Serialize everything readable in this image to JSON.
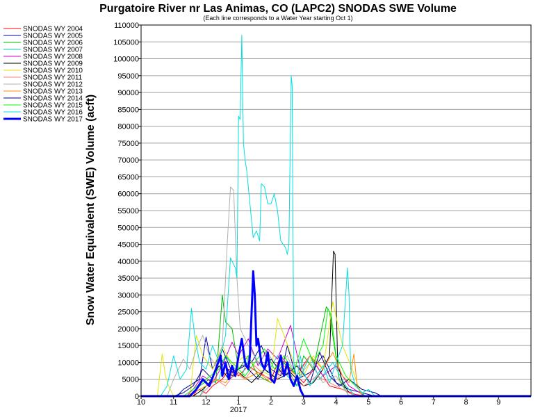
{
  "chart_data": {
    "type": "line",
    "title": "Purgatoire River nr Las Animas, CO (LAPC2) SNODAS SWE Volume",
    "subtitle": "(Each line corresponds to a Water Year starting Oct 1)",
    "ylabel": "Snow Water Equivalent (SWE) Volume (acft)",
    "xlabel": "",
    "ylim": [
      0,
      110000
    ],
    "y_ticks": [
      0,
      5000,
      10000,
      15000,
      20000,
      25000,
      30000,
      35000,
      40000,
      45000,
      50000,
      55000,
      60000,
      65000,
      70000,
      75000,
      80000,
      85000,
      90000,
      95000,
      100000,
      105000,
      110000
    ],
    "x_range_months": [
      10,
      22
    ],
    "x_ticks": [
      {
        "m": 10,
        "label": "10"
      },
      {
        "m": 11,
        "label": "11"
      },
      {
        "m": 12,
        "label": "12"
      },
      {
        "m": 13,
        "label": "1"
      },
      {
        "m": 14,
        "label": "2"
      },
      {
        "m": 15,
        "label": "3"
      },
      {
        "m": 16,
        "label": "4"
      },
      {
        "m": 17,
        "label": "5"
      },
      {
        "m": 18,
        "label": "6"
      },
      {
        "m": 19,
        "label": "7"
      },
      {
        "m": 20,
        "label": "8"
      },
      {
        "m": 21,
        "label": "9"
      }
    ],
    "year_label": "2017",
    "grid": true,
    "legend_position": "left",
    "series": [
      {
        "name": "SNODAS WY 2004",
        "color": "#ff0000",
        "width": 1,
        "x": [
          10,
          11.6,
          11.7,
          11.8,
          12.0,
          12.2,
          12.5,
          12.7,
          13.0,
          13.3,
          13.6,
          14.0,
          14.3,
          14.6,
          15.0,
          15.4,
          15.8,
          16.2,
          16.6,
          17.0,
          22
        ],
        "y": [
          0,
          0,
          1500,
          2000,
          800,
          3000,
          5000,
          8000,
          6000,
          9000,
          7000,
          5000,
          12000,
          8000,
          4000,
          9000,
          3000,
          2000,
          500,
          0,
          0
        ]
      },
      {
        "name": "SNODAS WY 2005",
        "color": "#0000aa",
        "width": 1,
        "x": [
          10,
          11.1,
          11.3,
          11.8,
          12.0,
          12.2,
          12.4,
          12.8,
          13.1,
          13.4,
          13.7,
          14.0,
          14.3,
          14.5,
          14.8,
          15.2,
          15.6,
          16.0,
          16.4,
          16.8,
          17.2,
          22
        ],
        "y": [
          0,
          0,
          2000,
          5000,
          17500,
          8000,
          12000,
          6000,
          9000,
          10000,
          15000,
          8000,
          6000,
          15000,
          5000,
          7000,
          12000,
          4000,
          2000,
          1000,
          0,
          0
        ]
      },
      {
        "name": "SNODAS WY 2006",
        "color": "#00bb00",
        "width": 1,
        "x": [
          10,
          11.5,
          11.8,
          12.1,
          12.3,
          12.5,
          12.6,
          12.8,
          13.0,
          13.3,
          13.6,
          14.0,
          14.4,
          14.8,
          15.0,
          15.3,
          15.7,
          15.8,
          15.9,
          16.1,
          16.4,
          22
        ],
        "y": [
          0,
          0,
          3000,
          5000,
          4000,
          30000,
          22000,
          20000,
          8000,
          12000,
          6000,
          4000,
          10000,
          3000,
          12000,
          8000,
          26500,
          25000,
          18000,
          5000,
          0,
          0
        ]
      },
      {
        "name": "SNODAS WY 2007",
        "color": "#00cccc",
        "width": 1,
        "x": [
          10,
          11.8,
          12.0,
          12.4,
          12.6,
          12.8,
          13.1,
          13.4,
          13.6,
          13.9,
          14.2,
          14.5,
          14.8,
          15.0,
          15.2,
          15.5,
          15.9,
          16.3,
          16.6,
          22
        ],
        "y": [
          0,
          0,
          3000,
          5000,
          12000,
          9000,
          6000,
          14000,
          10000,
          7000,
          12000,
          6000,
          3000,
          8000,
          12000,
          5000,
          10000,
          3000,
          0,
          0
        ]
      },
      {
        "name": "SNODAS WY 2008",
        "color": "#cc00cc",
        "width": 1,
        "x": [
          10,
          11.4,
          11.6,
          11.9,
          12.2,
          12.5,
          12.8,
          13.0,
          13.3,
          13.6,
          13.9,
          14.2,
          14.4,
          14.6,
          14.9,
          15.2,
          15.6,
          16.0,
          16.4,
          16.9,
          22
        ],
        "y": [
          0,
          0,
          2000,
          6000,
          4000,
          9000,
          16000,
          12000,
          17000,
          9000,
          14000,
          11000,
          16000,
          21000,
          8000,
          12000,
          6000,
          9000,
          3000,
          0,
          0
        ]
      },
      {
        "name": "SNODAS WY 2009",
        "color": "#000000",
        "width": 1,
        "x": [
          10,
          11.6,
          11.9,
          12.1,
          12.4,
          12.7,
          13.0,
          13.4,
          13.8,
          14.2,
          14.6,
          15.0,
          15.3,
          15.6,
          15.8,
          15.92,
          15.97,
          16.05,
          16.2,
          16.4,
          16.6,
          22
        ],
        "y": [
          0,
          0,
          2000,
          4000,
          9000,
          5000,
          7000,
          4000,
          8000,
          5000,
          7000,
          3000,
          4000,
          8000,
          12000,
          43000,
          42000,
          10000,
          4000,
          1000,
          0,
          0
        ]
      },
      {
        "name": "SNODAS WY 2010",
        "color": "#e5e500",
        "width": 1,
        "x": [
          10,
          10.5,
          10.65,
          10.75,
          10.85,
          11.0,
          11.5,
          11.7,
          11.9,
          12.2,
          12.5,
          12.8,
          13.2,
          13.6,
          14.0,
          14.2,
          14.4,
          14.7,
          15.0,
          15.3,
          15.6,
          15.9,
          16.2,
          16.5,
          16.8,
          22
        ],
        "y": [
          0,
          0,
          12500,
          6000,
          3000,
          0,
          0,
          18000,
          12000,
          8000,
          15000,
          9000,
          12000,
          8000,
          6000,
          23000,
          18000,
          10000,
          6000,
          12000,
          8000,
          28000,
          15000,
          8000,
          0,
          0
        ]
      },
      {
        "name": "SNODAS WY 2011",
        "color": "#ff8080",
        "width": 1,
        "x": [
          10,
          11.8,
          12.0,
          12.3,
          12.6,
          12.9,
          13.2,
          13.5,
          13.8,
          14.1,
          14.4,
          14.7,
          15.0,
          15.4,
          15.8,
          16.2,
          16.6,
          22
        ],
        "y": [
          0,
          0,
          2000,
          5000,
          3000,
          7000,
          5000,
          9000,
          6000,
          4000,
          8000,
          5000,
          3000,
          6000,
          4000,
          2000,
          0,
          0
        ]
      },
      {
        "name": "SNODAS WY 2012",
        "color": "#b0b0b0",
        "width": 1,
        "x": [
          10,
          10.8,
          11.0,
          11.3,
          11.5,
          11.7,
          11.9,
          12.1,
          12.3,
          12.5,
          12.65,
          12.75,
          12.85,
          12.95,
          13.05,
          13.3,
          13.6,
          13.9,
          14.2,
          14.5,
          14.8,
          15.2,
          15.6,
          16.0,
          16.4,
          22
        ],
        "y": [
          0,
          0,
          5000,
          11000,
          8000,
          14000,
          18000,
          12000,
          9000,
          15000,
          45000,
          62000,
          61000,
          35000,
          20000,
          15000,
          10000,
          13000,
          8000,
          12000,
          5000,
          10000,
          4000,
          6000,
          0,
          0
        ]
      },
      {
        "name": "SNODAS WY 2013",
        "color": "#ff8c00",
        "width": 1,
        "x": [
          10,
          11.4,
          11.7,
          12.0,
          12.3,
          12.6,
          12.9,
          13.2,
          13.6,
          14.0,
          14.4,
          14.8,
          15.2,
          15.6,
          15.9,
          16.2,
          16.4,
          16.55,
          16.65,
          16.8,
          22
        ],
        "y": [
          0,
          0,
          1500,
          3000,
          5000,
          4000,
          8000,
          5000,
          7000,
          4000,
          9000,
          6000,
          12000,
          8000,
          13000,
          6000,
          4000,
          12500,
          3000,
          0,
          0
        ]
      },
      {
        "name": "SNODAS WY 2014",
        "color": "#000080",
        "width": 1,
        "x": [
          10,
          11.0,
          11.3,
          11.6,
          11.9,
          12.2,
          12.5,
          12.8,
          13.2,
          13.6,
          14.0,
          14.4,
          14.8,
          15.2,
          15.5,
          15.8,
          16.1,
          16.4,
          16.8,
          17.2,
          17.4,
          22
        ],
        "y": [
          0,
          0,
          1000,
          3000,
          8000,
          5000,
          14000,
          7000,
          9000,
          5000,
          11000,
          6000,
          9000,
          4000,
          13000,
          6000,
          3000,
          5000,
          2000,
          1000,
          0,
          0
        ]
      },
      {
        "name": "SNODAS WY 2015",
        "color": "#00ff00",
        "width": 1,
        "x": [
          10,
          11.3,
          11.6,
          12.0,
          12.4,
          12.6,
          12.9,
          13.2,
          13.5,
          13.8,
          14.1,
          14.4,
          14.7,
          15.0,
          15.3,
          15.6,
          15.75,
          15.85,
          16.0,
          16.3,
          16.6,
          16.9,
          22
        ],
        "y": [
          0,
          0,
          2000,
          5000,
          8000,
          12000,
          9000,
          6000,
          10000,
          14000,
          8000,
          12000,
          7000,
          17000,
          10000,
          15000,
          26000,
          24000,
          12000,
          6000,
          3000,
          0,
          0
        ]
      },
      {
        "name": "SNODAS WY 2016",
        "color": "#00e0e0",
        "width": 1,
        "x": [
          10,
          10.6,
          10.8,
          11.0,
          11.2,
          11.4,
          11.55,
          11.65,
          11.8,
          12.0,
          12.2,
          12.4,
          12.6,
          12.75,
          12.8,
          12.9,
          12.95,
          13.0,
          13.05,
          13.1,
          13.15,
          13.2,
          13.25,
          13.3,
          13.45,
          13.55,
          13.65,
          13.7,
          13.8,
          13.9,
          14.0,
          14.1,
          14.2,
          14.3,
          14.45,
          14.5,
          14.55,
          14.62,
          14.65,
          14.7,
          14.8,
          14.9,
          15.0,
          15.2,
          15.4,
          15.6,
          15.8,
          16.0,
          16.2,
          16.35,
          16.4,
          16.45,
          16.6,
          16.8,
          17.0,
          17.2,
          22
        ],
        "y": [
          0,
          0,
          3000,
          12000,
          5000,
          8000,
          26000,
          18000,
          10000,
          8000,
          15000,
          10000,
          18000,
          41000,
          40000,
          38000,
          35000,
          83000,
          82000,
          107000,
          75000,
          70000,
          67000,
          62000,
          47000,
          49000,
          46000,
          63000,
          62000,
          57000,
          57000,
          60000,
          55000,
          46000,
          44000,
          42000,
          45000,
          95000,
          92000,
          10000,
          5000,
          12000,
          7000,
          3000,
          6000,
          9000,
          4000,
          10000,
          15000,
          38000,
          30000,
          8000,
          3000,
          1000,
          2000,
          0,
          0
        ]
      },
      {
        "name": "SNODAS WY 2017",
        "color": "#0000ff",
        "width": 3,
        "x": [
          10,
          11.5,
          11.7,
          11.9,
          12.1,
          12.3,
          12.45,
          12.5,
          12.6,
          12.7,
          12.8,
          12.9,
          13.0,
          13.1,
          13.2,
          13.3,
          13.35,
          13.45,
          13.5,
          13.55,
          13.6,
          13.7,
          13.8,
          13.9,
          14.0,
          14.1,
          14.2,
          14.3,
          14.4,
          14.5,
          14.6,
          14.7,
          14.8,
          14.9,
          15.0,
          22
        ],
        "y": [
          0,
          0,
          2000,
          5000,
          3000,
          8000,
          12000,
          6000,
          10000,
          5000,
          9000,
          6000,
          12000,
          17000,
          10000,
          8000,
          12000,
          37000,
          30000,
          15000,
          17000,
          10000,
          8000,
          13000,
          5000,
          4000,
          8000,
          12000,
          6000,
          10000,
          5000,
          3000,
          6000,
          2000,
          0,
          0
        ]
      }
    ]
  }
}
